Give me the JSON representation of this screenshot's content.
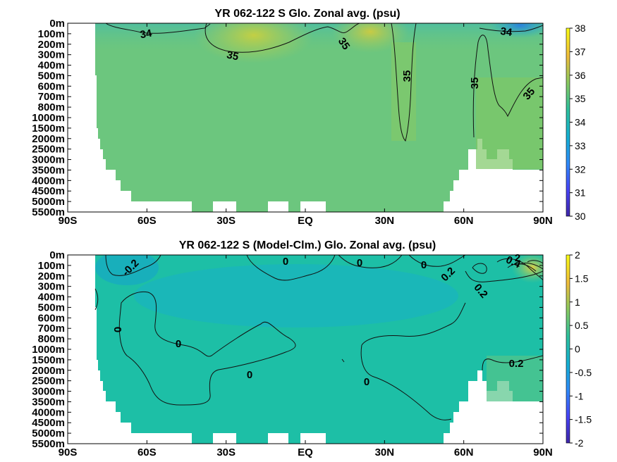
{
  "chart_data": [
    {
      "type": "heatmap",
      "title": "YR 062-122 S Glo. Zonal avg. (psu)",
      "x_ticks": [
        "90S",
        "60S",
        "30S",
        "EQ",
        "30N",
        "60N",
        "90N"
      ],
      "y_ticks": [
        "0m",
        "100m",
        "200m",
        "300m",
        "400m",
        "500m",
        "600m",
        "700m",
        "800m",
        "1000m",
        "1500m",
        "2000m",
        "2500m",
        "3000m",
        "3500m",
        "4000m",
        "4500m",
        "5000m",
        "5500m"
      ],
      "colorbar": {
        "min": 30,
        "max": 38,
        "ticks": [
          "38",
          "37",
          "36",
          "35",
          "34",
          "33",
          "32",
          "31",
          "30"
        ]
      },
      "contour_labels": [
        "34",
        "35",
        "35",
        "35",
        "35",
        "34",
        "35"
      ],
      "colormap": [
        "#3e26a8",
        "#4743f7",
        "#2f8afa",
        "#14b0d4",
        "#2fc19c",
        "#8ac960",
        "#f0bd3b",
        "#f9fb15"
      ]
    },
    {
      "type": "heatmap",
      "title": "YR 062-122 S (Model-Clm.) Glo. Zonal avg. (psu)",
      "x_ticks": [
        "90S",
        "60S",
        "30S",
        "EQ",
        "30N",
        "60N",
        "90N"
      ],
      "y_ticks": [
        "0m",
        "100m",
        "200m",
        "300m",
        "400m",
        "500m",
        "600m",
        "700m",
        "800m",
        "1000m",
        "1500m",
        "2000m",
        "2500m",
        "3000m",
        "3500m",
        "4000m",
        "4500m",
        "5000m",
        "5500m"
      ],
      "colorbar": {
        "min": -2,
        "max": 2,
        "ticks": [
          "2",
          "1.5",
          "1",
          "0.5",
          "0",
          "-0.5",
          "-1",
          "-1.5",
          "-2"
        ]
      },
      "contour_labels": [
        "-0.2",
        "0",
        "0",
        "0",
        "0",
        "0",
        "0",
        "0",
        "0.2",
        "0.2",
        "0.4",
        "2",
        "0.2"
      ],
      "colormap": [
        "#3e26a8",
        "#4743f7",
        "#2f8afa",
        "#14b0d4",
        "#2fc19c",
        "#8ac960",
        "#f0bd3b",
        "#f9fb15"
      ]
    }
  ]
}
